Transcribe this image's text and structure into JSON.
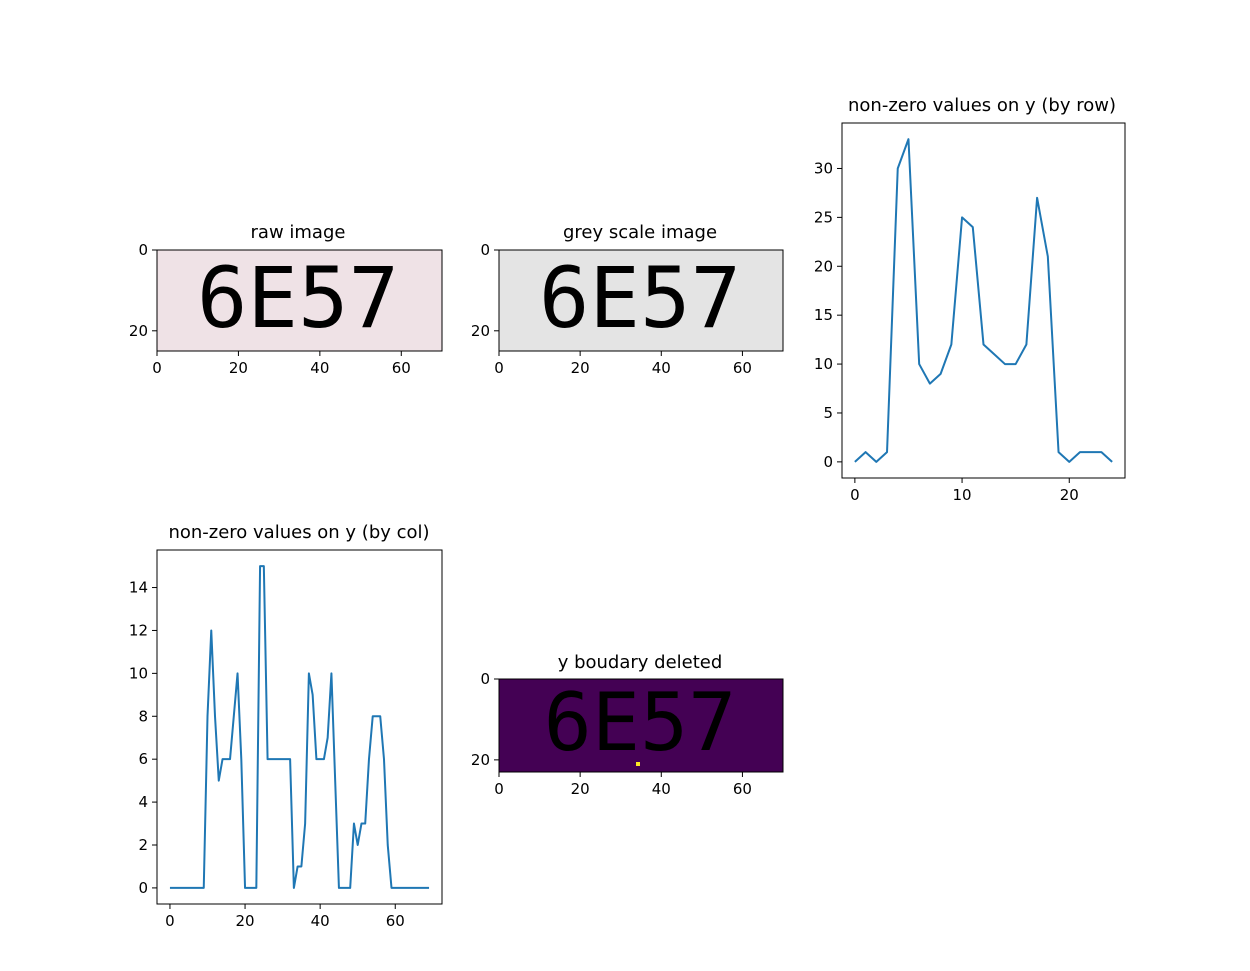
{
  "colors": {
    "line": "#1f77b4",
    "raw_bg": "#efe2e6",
    "raw_ink": "#3a1230",
    "grey_bg": "#e4e4e4",
    "grey_ink": "#141414",
    "mask_bg": "#440154",
    "mask_ink": "#31688e",
    "mask_hot": "#fde725"
  },
  "chart_data": [
    {
      "type": "image",
      "title": "raw image",
      "text_shown": "6E57",
      "xlim": [
        0,
        70
      ],
      "ylim": [
        25,
        0
      ],
      "xticks": [
        0,
        20,
        40,
        60
      ],
      "yticks": [
        0,
        20
      ]
    },
    {
      "type": "image",
      "title": "grey scale image",
      "text_shown": "6E57",
      "xlim": [
        0,
        70
      ],
      "ylim": [
        25,
        0
      ],
      "xticks": [
        0,
        20,
        40,
        60
      ],
      "yticks": [
        0,
        20
      ]
    },
    {
      "type": "line",
      "title": "non-zero values on y (by row)",
      "x": [
        0,
        1,
        2,
        3,
        4,
        5,
        6,
        7,
        8,
        9,
        10,
        11,
        12,
        13,
        14,
        15,
        16,
        17,
        18,
        19,
        20,
        21,
        22,
        23,
        24
      ],
      "values": [
        0,
        1,
        0,
        1,
        30,
        33,
        10,
        8,
        9,
        12,
        25,
        24,
        12,
        11,
        10,
        10,
        12,
        27,
        21,
        1,
        0,
        1,
        1,
        1,
        0
      ],
      "xlim": [
        -1.2,
        25.2
      ],
      "ylim": [
        -1.65,
        34.65
      ],
      "xticks": [
        0,
        10,
        20
      ],
      "yticks": [
        0,
        5,
        10,
        15,
        20,
        25,
        30
      ]
    },
    {
      "type": "line",
      "title": "non-zero values on y (by col)",
      "x": [
        0,
        1,
        2,
        3,
        4,
        5,
        6,
        7,
        8,
        9,
        10,
        11,
        12,
        13,
        14,
        15,
        16,
        17,
        18,
        19,
        20,
        21,
        22,
        23,
        24,
        25,
        26,
        27,
        28,
        29,
        30,
        31,
        32,
        33,
        34,
        35,
        36,
        37,
        38,
        39,
        40,
        41,
        42,
        43,
        44,
        45,
        46,
        47,
        48,
        49,
        50,
        51,
        52,
        53,
        54,
        55,
        56,
        57,
        58,
        59,
        60,
        61,
        62,
        63,
        64,
        65,
        66,
        67,
        68,
        69
      ],
      "values": [
        0,
        0,
        0,
        0,
        0,
        0,
        0,
        0,
        0,
        0,
        8,
        12,
        8,
        5,
        6,
        6,
        6,
        8,
        10,
        6,
        0,
        0,
        0,
        0,
        15,
        15,
        6,
        6,
        6,
        6,
        6,
        6,
        6,
        0,
        1,
        1,
        3,
        10,
        9,
        6,
        6,
        6,
        7,
        10,
        5,
        0,
        0,
        0,
        0,
        3,
        2,
        3,
        3,
        6,
        8,
        8,
        8,
        6,
        2,
        0,
        0,
        0,
        0,
        0,
        0,
        0,
        0,
        0,
        0,
        0
      ],
      "xlim": [
        -3.45,
        72.45
      ],
      "ylim": [
        -0.75,
        15.75
      ],
      "xticks": [
        0,
        20,
        40,
        60
      ],
      "yticks": [
        0,
        2,
        4,
        6,
        8,
        10,
        12,
        14
      ]
    },
    {
      "type": "heatmap",
      "title": "y boudary deleted",
      "text_shown": "6E57",
      "xlim": [
        0,
        70
      ],
      "ylim": [
        23,
        0
      ],
      "xticks": [
        0,
        20,
        40,
        60
      ],
      "yticks": [
        0,
        20
      ]
    }
  ]
}
